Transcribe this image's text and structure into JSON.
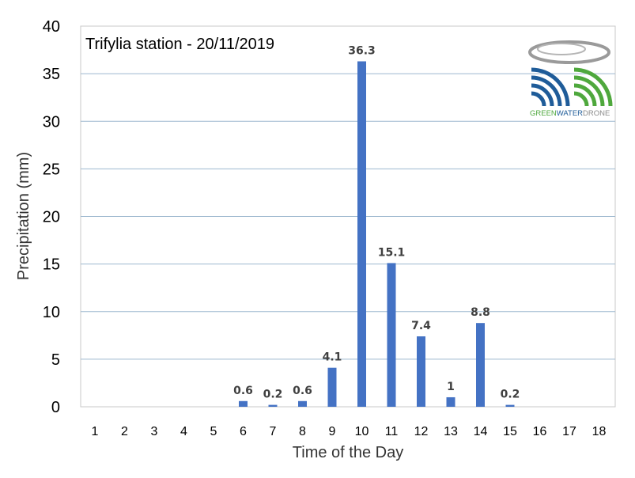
{
  "chart_data": {
    "type": "bar",
    "title": "Trifylia station - 20/11/2019",
    "xlabel": "Time of the Day",
    "ylabel": "Precipitation (mm)",
    "ylim": [
      0,
      40
    ],
    "yticks": [
      0,
      5,
      10,
      15,
      20,
      25,
      30,
      35,
      40
    ],
    "categories": [
      "1",
      "2",
      "3",
      "4",
      "5",
      "6",
      "7",
      "8",
      "9",
      "10",
      "11",
      "12",
      "13",
      "14",
      "15",
      "16",
      "17",
      "18"
    ],
    "values": [
      0,
      0,
      0,
      0,
      0,
      0.6,
      0.2,
      0.6,
      4.1,
      36.3,
      15.1,
      7.4,
      1,
      8.8,
      0.2,
      0,
      0,
      0
    ],
    "data_labels": [
      "",
      "",
      "",
      "",
      "",
      "0.6",
      "0.2",
      "0.6",
      "4.1",
      "36.3",
      "15.1",
      "7.4",
      "1",
      "8.8",
      "0.2",
      "",
      "",
      ""
    ],
    "grid": true,
    "bar_color": "#4472C4",
    "gridline_color": "#9DB8CF"
  },
  "logo": {
    "name": "logo-green-water-drone",
    "part1": "GREEN",
    "part2": "WATER",
    "part3": "DRONE",
    "colors": {
      "green": "#4FA83D",
      "blue": "#1F5C99",
      "gray": "#8C8C8C"
    }
  }
}
